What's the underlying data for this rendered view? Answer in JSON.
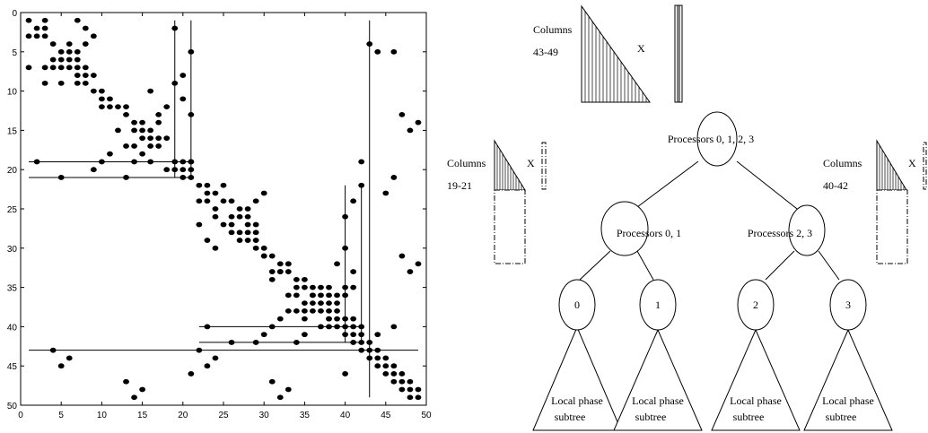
{
  "chart_data": {
    "type": "scatter",
    "title": "",
    "xlabel": "",
    "ylabel": "",
    "xlim": [
      0,
      50
    ],
    "ylim": [
      50,
      0
    ],
    "x_ticks": [
      0,
      5,
      10,
      15,
      20,
      25,
      30,
      35,
      40,
      45,
      50
    ],
    "y_ticks": [
      0,
      5,
      10,
      15,
      20,
      25,
      30,
      35,
      40,
      45,
      50
    ],
    "y_inverted": true,
    "grid": false,
    "series": [
      {
        "marker": "filled-circle",
        "points": [
          [
            1,
            1
          ],
          [
            3,
            1
          ],
          [
            7,
            1
          ],
          [
            1,
            3
          ],
          [
            2,
            3
          ],
          [
            2,
            2
          ],
          [
            3,
            2
          ],
          [
            3,
            3
          ],
          [
            4,
            4
          ],
          [
            5,
            5
          ],
          [
            6,
            4
          ],
          [
            6,
            5
          ],
          [
            6,
            6
          ],
          [
            5,
            6
          ],
          [
            4,
            6
          ],
          [
            4,
            7
          ],
          [
            3,
            7
          ],
          [
            5,
            7
          ],
          [
            6,
            7
          ],
          [
            7,
            7
          ],
          [
            8,
            7
          ],
          [
            7,
            6
          ],
          [
            7,
            5
          ],
          [
            8,
            4
          ],
          [
            9,
            3
          ],
          [
            8,
            2
          ],
          [
            1,
            7
          ],
          [
            3,
            9
          ],
          [
            5,
            9
          ],
          [
            7,
            9
          ],
          [
            8,
            9
          ],
          [
            7,
            8
          ],
          [
            8,
            8
          ],
          [
            9,
            8
          ],
          [
            9,
            10
          ],
          [
            10,
            10
          ],
          [
            10,
            11
          ],
          [
            11,
            11
          ],
          [
            10,
            12
          ],
          [
            11,
            12
          ],
          [
            12,
            12
          ],
          [
            13,
            13
          ],
          [
            14,
            14
          ],
          [
            15,
            14
          ],
          [
            14,
            15
          ],
          [
            15,
            15
          ],
          [
            16,
            15
          ],
          [
            17,
            14
          ],
          [
            16,
            16
          ],
          [
            17,
            16
          ],
          [
            15,
            16
          ],
          [
            14,
            17
          ],
          [
            16,
            17
          ],
          [
            17,
            17
          ],
          [
            18,
            16
          ],
          [
            17,
            13
          ],
          [
            18,
            12
          ],
          [
            16,
            10
          ],
          [
            19,
            9
          ],
          [
            20,
            8
          ],
          [
            13,
            12
          ],
          [
            12,
            15
          ],
          [
            11,
            18
          ],
          [
            10,
            19
          ],
          [
            14,
            19
          ],
          [
            15,
            18
          ],
          [
            13,
            17
          ],
          [
            16,
            19
          ],
          [
            18,
            20
          ],
          [
            19,
            19
          ],
          [
            20,
            19
          ],
          [
            19,
            20
          ],
          [
            20,
            20
          ],
          [
            20,
            21
          ],
          [
            21,
            21
          ],
          [
            21,
            20
          ],
          [
            21,
            19
          ],
          [
            9,
            20
          ],
          [
            2,
            19
          ],
          [
            5,
            21
          ],
          [
            13,
            21
          ],
          [
            19,
            2
          ],
          [
            21,
            5
          ],
          [
            20,
            11
          ],
          [
            21,
            13
          ],
          [
            21,
            19
          ],
          [
            22,
            22
          ],
          [
            23,
            22
          ],
          [
            24,
            23
          ],
          [
            25,
            22
          ],
          [
            23,
            23
          ],
          [
            22,
            24
          ],
          [
            23,
            24
          ],
          [
            24,
            25
          ],
          [
            25,
            24
          ],
          [
            26,
            24
          ],
          [
            27,
            25
          ],
          [
            26,
            26
          ],
          [
            27,
            26
          ],
          [
            28,
            27
          ],
          [
            28,
            26
          ],
          [
            28,
            25
          ],
          [
            29,
            24
          ],
          [
            30,
            23
          ],
          [
            29,
            27
          ],
          [
            29,
            28
          ],
          [
            28,
            28
          ],
          [
            27,
            28
          ],
          [
            26,
            27
          ],
          [
            25,
            27
          ],
          [
            24,
            26
          ],
          [
            22,
            27
          ],
          [
            23,
            29
          ],
          [
            24,
            30
          ],
          [
            26,
            28
          ],
          [
            27,
            29
          ],
          [
            28,
            29
          ],
          [
            29,
            29
          ],
          [
            29,
            30
          ],
          [
            30,
            30
          ],
          [
            30,
            31
          ],
          [
            31,
            31
          ],
          [
            32,
            32
          ],
          [
            33,
            32
          ],
          [
            32,
            33
          ],
          [
            33,
            33
          ],
          [
            34,
            34
          ],
          [
            34,
            35
          ],
          [
            35,
            34
          ],
          [
            35,
            35
          ],
          [
            36,
            35
          ],
          [
            36,
            36
          ],
          [
            37,
            36
          ],
          [
            37,
            35
          ],
          [
            37,
            37
          ],
          [
            36,
            37
          ],
          [
            35,
            37
          ],
          [
            34,
            36
          ],
          [
            33,
            38
          ],
          [
            32,
            39
          ],
          [
            31,
            40
          ],
          [
            30,
            41
          ],
          [
            29,
            42
          ],
          [
            33,
            36
          ],
          [
            34,
            38
          ],
          [
            35,
            38
          ],
          [
            36,
            38
          ],
          [
            37,
            38
          ],
          [
            38,
            38
          ],
          [
            38,
            37
          ],
          [
            38,
            36
          ],
          [
            38,
            35
          ],
          [
            39,
            36
          ],
          [
            39,
            37
          ],
          [
            39,
            38
          ],
          [
            39,
            39
          ],
          [
            38,
            39
          ],
          [
            38,
            40
          ],
          [
            39,
            40
          ],
          [
            40,
            40
          ],
          [
            40,
            41
          ],
          [
            41,
            41
          ],
          [
            41,
            40
          ],
          [
            41,
            39
          ],
          [
            40,
            39
          ],
          [
            41,
            42
          ],
          [
            42,
            42
          ],
          [
            42,
            41
          ],
          [
            42,
            40
          ],
          [
            34,
            42
          ],
          [
            30,
            31
          ],
          [
            31,
            33
          ],
          [
            32,
            33
          ],
          [
            39,
            32
          ],
          [
            40,
            30
          ],
          [
            40,
            26
          ],
          [
            41,
            24
          ],
          [
            42,
            22
          ],
          [
            42,
            19
          ],
          [
            33,
            32
          ],
          [
            31,
            34
          ],
          [
            23,
            40
          ],
          [
            26,
            42
          ],
          [
            38,
            39
          ],
          [
            36,
            36
          ],
          [
            35,
            39
          ],
          [
            35,
            41
          ],
          [
            37,
            40
          ],
          [
            40,
            36
          ],
          [
            40,
            35
          ],
          [
            41,
            35
          ],
          [
            41,
            33
          ],
          [
            43,
            43
          ],
          [
            44,
            43
          ],
          [
            43,
            44
          ],
          [
            44,
            44
          ],
          [
            45,
            44
          ],
          [
            44,
            45
          ],
          [
            45,
            45
          ],
          [
            46,
            45
          ],
          [
            45,
            46
          ],
          [
            46,
            46
          ],
          [
            47,
            46
          ],
          [
            46,
            47
          ],
          [
            47,
            47
          ],
          [
            48,
            47
          ],
          [
            47,
            48
          ],
          [
            48,
            48
          ],
          [
            49,
            48
          ],
          [
            48,
            49
          ],
          [
            49,
            49
          ],
          [
            46,
            5
          ],
          [
            43,
            4
          ],
          [
            44,
            5
          ],
          [
            47,
            13
          ],
          [
            48,
            15
          ],
          [
            49,
            14
          ],
          [
            46,
            21
          ],
          [
            45,
            23
          ],
          [
            47,
            31
          ],
          [
            48,
            33
          ],
          [
            49,
            32
          ],
          [
            46,
            40
          ],
          [
            44,
            41
          ],
          [
            4,
            43
          ],
          [
            5,
            45
          ],
          [
            6,
            44
          ],
          [
            22,
            43
          ],
          [
            23,
            45
          ],
          [
            24,
            44
          ],
          [
            21,
            46
          ],
          [
            13,
            47
          ],
          [
            14,
            49
          ],
          [
            15,
            48
          ],
          [
            31,
            47
          ],
          [
            32,
            49
          ],
          [
            33,
            48
          ],
          [
            40,
            46
          ],
          [
            43,
            42
          ],
          [
            42,
            43
          ]
        ]
      }
    ],
    "separator_lines": {
      "horizontal": [
        {
          "y": 19,
          "x_from": 1,
          "x_to": 21
        },
        {
          "y": 21,
          "x_from": 1,
          "x_to": 21
        },
        {
          "y": 40,
          "x_from": 22,
          "x_to": 42
        },
        {
          "y": 42,
          "x_from": 22,
          "x_to": 42
        },
        {
          "y": 43,
          "x_from": 1,
          "x_to": 49
        }
      ],
      "vertical": [
        {
          "x": 19,
          "y_from": 1,
          "y_to": 21
        },
        {
          "x": 21,
          "y_from": 1,
          "y_to": 21
        },
        {
          "x": 40,
          "y_from": 22,
          "y_to": 42
        },
        {
          "x": 42,
          "y_from": 22,
          "y_to": 42
        },
        {
          "x": 43,
          "y_from": 1,
          "y_to": 49
        }
      ]
    }
  },
  "tree": {
    "root_label": "Processors 0, 1, 2, 3",
    "left_label": "Processors 0, 1",
    "right_label": "Processors 2, 3",
    "leaves": [
      "0",
      "1",
      "2",
      "3"
    ],
    "subtree_label_line1": "Local phase",
    "subtree_label_line2": "subtree"
  },
  "blocks": {
    "top": {
      "line1": "Columns",
      "line2": "43-49",
      "op": "X"
    },
    "left": {
      "line1": "Columns",
      "line2": "19-21",
      "op": "X"
    },
    "right": {
      "line1": "Columns",
      "line2": "40-42",
      "op": "X"
    }
  }
}
